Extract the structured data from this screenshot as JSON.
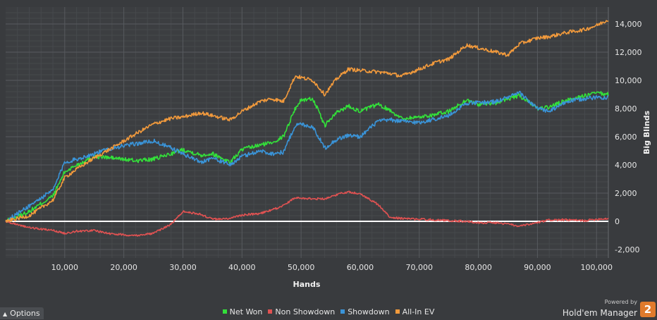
{
  "chart_data": {
    "type": "line",
    "title": "",
    "xlabel": "Hands",
    "ylabel": "Big Blinds",
    "xlim": [
      0,
      102000
    ],
    "ylim": [
      -2600,
      15200
    ],
    "x_ticks": [
      10000,
      20000,
      30000,
      40000,
      50000,
      60000,
      70000,
      80000,
      90000,
      100000
    ],
    "x_tick_labels": [
      "10,000",
      "20,000",
      "30,000",
      "40,000",
      "50,000",
      "60,000",
      "70,000",
      "80,000",
      "90,000",
      "100,000"
    ],
    "y_ticks": [
      -2000,
      0,
      2000,
      4000,
      6000,
      8000,
      10000,
      12000,
      14000
    ],
    "y_tick_labels": [
      "-2,000",
      "0",
      "2,000",
      "4,000",
      "6,000",
      "8,000",
      "10,000",
      "12,000",
      "14,000"
    ],
    "y_axis_side": "right",
    "grid": true,
    "zero_line": true,
    "legend_position": "bottom",
    "x": [
      0,
      4000,
      8000,
      10000,
      12000,
      15000,
      18000,
      22000,
      25000,
      28000,
      30000,
      33000,
      35000,
      38000,
      40000,
      43000,
      45000,
      47000,
      49000,
      50000,
      52000,
      54000,
      56000,
      58000,
      60000,
      63000,
      65000,
      67000,
      70000,
      73000,
      75000,
      78000,
      80000,
      83000,
      85000,
      87000,
      90000,
      92000,
      95000,
      98000,
      100000,
      102000
    ],
    "series": [
      {
        "name": "Net Won",
        "color": "#33e03a",
        "noise": 300,
        "values": [
          0,
          700,
          1800,
          3500,
          4000,
          4600,
          4500,
          4300,
          4400,
          4800,
          5100,
          4700,
          4800,
          4200,
          5100,
          5400,
          5600,
          6000,
          8000,
          8600,
          8700,
          6800,
          7700,
          8200,
          7800,
          8300,
          7900,
          7300,
          7400,
          7600,
          7800,
          8600,
          8300,
          8400,
          8700,
          8900,
          8000,
          8100,
          8600,
          8900,
          9100,
          9000
        ]
      },
      {
        "name": "Non Showdown",
        "color": "#e05252",
        "noise": 140,
        "values": [
          0,
          -450,
          -650,
          -850,
          -700,
          -650,
          -900,
          -1000,
          -850,
          -200,
          700,
          500,
          150,
          200,
          450,
          550,
          800,
          1100,
          1700,
          1650,
          1600,
          1600,
          1900,
          2100,
          1950,
          1200,
          300,
          200,
          150,
          100,
          50,
          0,
          -100,
          -100,
          -200,
          -350,
          -100,
          100,
          100,
          50,
          150,
          200
        ]
      },
      {
        "name": "Showdown",
        "color": "#3a94d8",
        "noise": 300,
        "values": [
          0,
          1100,
          2200,
          4200,
          4400,
          4800,
          5200,
          5500,
          5700,
          5200,
          4800,
          4200,
          4500,
          4000,
          4600,
          5000,
          4800,
          4900,
          6800,
          6900,
          6700,
          5200,
          5800,
          6100,
          6000,
          7100,
          7200,
          7100,
          7000,
          7300,
          7500,
          8400,
          8400,
          8500,
          8800,
          9100,
          8000,
          7800,
          8500,
          8700,
          8800,
          8800
        ]
      },
      {
        "name": "All-In EV",
        "color": "#f29a3c",
        "noise": 260,
        "values": [
          0,
          400,
          1500,
          3100,
          3700,
          4500,
          5200,
          6200,
          6900,
          7300,
          7400,
          7700,
          7500,
          7200,
          7800,
          8500,
          8700,
          8500,
          10300,
          10200,
          10000,
          9000,
          10100,
          10800,
          10700,
          10600,
          10500,
          10300,
          10800,
          11300,
          11500,
          12500,
          12300,
          12000,
          11800,
          12600,
          13000,
          13100,
          13400,
          13600,
          13900,
          14300
        ]
      }
    ]
  },
  "ui": {
    "options_label": "Options",
    "powered_by": "Powered by",
    "brand_name": "Hold'em Manager",
    "brand_logo_text": "2"
  }
}
